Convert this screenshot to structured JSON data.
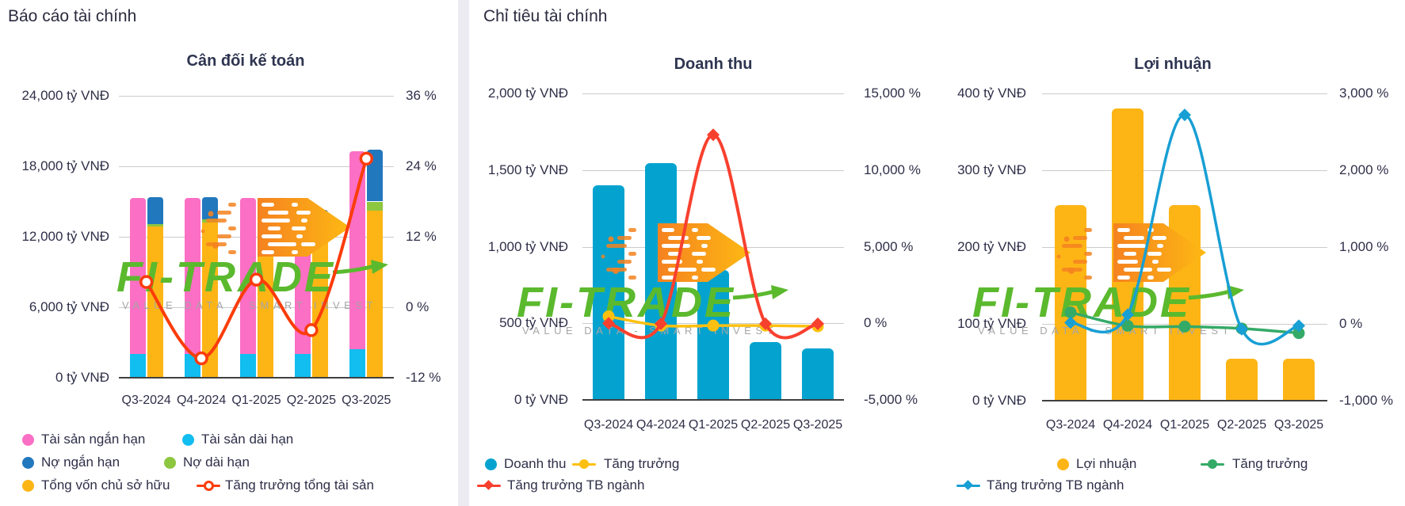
{
  "page": {
    "left_section_title": "Báo cáo tài chính",
    "right_section_title": "Chỉ tiêu tài chính"
  },
  "watermark": {
    "brand": "FI-TRADE",
    "tagline": "VALUE DATA - SMART INVEST",
    "arrow_color_start": "#f58220",
    "arrow_color_end": "#fdb913",
    "brand_color": "#5bb92e",
    "tagline_color": "#a6a6a6"
  },
  "colors": {
    "grid": "#cccccc",
    "axis": "#404040",
    "text": "#2f2f49",
    "divider": "#ebebf1"
  },
  "chart_data": [
    {
      "id": "can-doi-ke-toan",
      "type": "bar",
      "title": "Cân đối kế toán",
      "categories": [
        "Q3-2024",
        "Q4-2024",
        "Q1-2025",
        "Q2-2025",
        "Q3-2025"
      ],
      "left_axis": {
        "min": 0,
        "max": 24000,
        "ticks": [
          "24,000 tỷ VNĐ",
          "18,000 tỷ VNĐ",
          "12,000 tỷ VNĐ",
          "6,000 tỷ VNĐ",
          "0 tỷ VNĐ"
        ]
      },
      "right_axis": {
        "min": -12,
        "max": 36,
        "ticks": [
          "36 %",
          "24 %",
          "12 %",
          "0 %",
          "-12 %"
        ]
      },
      "stacks": [
        {
          "name": "tai-san",
          "series": [
            {
              "key": "tai-san-dai-han",
              "name": "Tài sản dài hạn",
              "color": "#12bdf0",
              "values": [
                2000,
                2000,
                2000,
                2000,
                2400
              ]
            },
            {
              "key": "tai-san-ngan-han",
              "name": "Tài sản ngắn hạn",
              "color": "#fb6fc4",
              "values": [
                13300,
                13300,
                13300,
                12400,
                16900
              ]
            }
          ]
        },
        {
          "name": "nguon-von",
          "series": [
            {
              "key": "tong-von-chu-so-huu",
              "name": "Tổng vốn chủ sở hữu",
              "color": "#fdb515",
              "values": [
                12850,
                13200,
                13400,
                12300,
                14200
              ]
            },
            {
              "key": "no-dai-han",
              "name": "Nợ dài hạn",
              "color": "#8dc63f",
              "values": [
                200,
                250,
                400,
                700,
                800
              ]
            },
            {
              "key": "no-ngan-han",
              "name": "Nợ ngắn hạn",
              "color": "#2278bd",
              "values": [
                2350,
                1950,
                1500,
                1300,
                4400
              ]
            }
          ]
        }
      ],
      "lines": [
        {
          "key": "tang-truong-tong-tai-san",
          "name": "Tăng trưởng tổng tài sản",
          "color": "#fb3c0a",
          "marker": "circle-open",
          "axis": "right",
          "width": 4,
          "values": [
            4.3,
            -8.7,
            4.7,
            -3.9,
            25.3
          ]
        }
      ],
      "legend": [
        [
          {
            "key": "tai-san-ngan-han",
            "label": "Tài sản ngắn hạn",
            "swatch": "circle",
            "color": "#fb6fc4"
          },
          {
            "key": "tai-san-dai-han",
            "label": "Tài sản dài hạn",
            "swatch": "circle",
            "color": "#12bdf0"
          }
        ],
        [
          {
            "key": "no-ngan-han",
            "label": "Nợ ngắn hạn",
            "swatch": "circle",
            "color": "#2278bd"
          },
          {
            "key": "no-dai-han",
            "label": "Nợ dài hạn",
            "swatch": "circle",
            "color": "#8dc63f"
          }
        ],
        [
          {
            "key": "tong-von-chu-so-huu",
            "label": "Tổng vốn chủ sở hữu",
            "swatch": "circle",
            "color": "#fdb515"
          },
          {
            "key": "tang-truong-tong-tai-san",
            "label": "Tăng trưởng tổng tài sản",
            "swatch": "line-circle-open",
            "color": "#fb3c0a"
          }
        ]
      ]
    },
    {
      "id": "doanh-thu",
      "type": "bar",
      "title": "Doanh thu",
      "categories": [
        "Q3-2024",
        "Q4-2024",
        "Q1-2025",
        "Q2-2025",
        "Q3-2025"
      ],
      "left_axis": {
        "min": 0,
        "max": 2000,
        "ticks": [
          "2,000 tỷ VNĐ",
          "1,500 tỷ VNĐ",
          "1,000 tỷ VNĐ",
          "500 tỷ VNĐ",
          "0 tỷ VNĐ"
        ]
      },
      "right_axis": {
        "min": -5000,
        "max": 15000,
        "ticks": [
          "15,000 %",
          "10,000 %",
          "5,000 %",
          "0 %",
          "-5,000 %"
        ]
      },
      "stacks": [
        {
          "name": "doanh-thu",
          "series": [
            {
              "key": "doanh-thu",
              "name": "Doanh thu",
              "color": "#04a3cf",
              "values": [
                1400,
                1545,
                845,
                375,
                335
              ]
            }
          ]
        }
      ],
      "lines": [
        {
          "key": "tang-truong",
          "name": "Tăng trưởng",
          "color": "#fdc010",
          "marker": "circle",
          "axis": "right",
          "width": 3.5,
          "values": [
            450,
            -150,
            -150,
            -150,
            -200
          ]
        },
        {
          "key": "tang-truong-tb-nganh",
          "name": "Tăng trưởng TB ngành",
          "color": "#f8402e",
          "marker": "diamond",
          "axis": "right",
          "width": 4,
          "values": [
            0,
            -30,
            12300,
            -30,
            -30
          ]
        }
      ],
      "legend": [
        [
          {
            "key": "doanh-thu",
            "label": "Doanh thu",
            "swatch": "circle",
            "color": "#04a3cf"
          },
          {
            "key": "tang-truong",
            "label": "Tăng trưởng",
            "swatch": "line-circle",
            "color": "#fdc010"
          }
        ],
        [
          {
            "key": "tang-truong-tb-nganh",
            "label": "Tăng trưởng TB ngành",
            "swatch": "line-diamond",
            "color": "#f8402e"
          }
        ]
      ]
    },
    {
      "id": "loi-nhuan",
      "type": "bar",
      "title": "Lợi nhuận",
      "categories": [
        "Q3-2024",
        "Q4-2024",
        "Q1-2025",
        "Q2-2025",
        "Q3-2025"
      ],
      "left_axis": {
        "min": 0,
        "max": 400,
        "ticks": [
          "400 tỷ VNĐ",
          "300 tỷ VNĐ",
          "200 tỷ VNĐ",
          "100 tỷ VNĐ",
          "0 tỷ VNĐ"
        ]
      },
      "right_axis": {
        "min": -1000,
        "max": 3000,
        "ticks": [
          "3,000 %",
          "2,000 %",
          "1,000 %",
          "0 %",
          "-1,000 %"
        ]
      },
      "stacks": [
        {
          "name": "loi-nhuan",
          "series": [
            {
              "key": "loi-nhuan",
              "name": "Lợi nhuận",
              "color": "#fdb515",
              "values": [
                255,
                380,
                255,
                55,
                55
              ]
            }
          ]
        }
      ],
      "lines": [
        {
          "key": "tang-truong",
          "name": "Tăng trưởng",
          "color": "#34aa67",
          "marker": "circle",
          "axis": "right",
          "width": 3.5,
          "values": [
            150,
            -25,
            -35,
            -60,
            -120
          ]
        },
        {
          "key": "tang-truong-tb-nganh",
          "name": "Tăng trưởng TB ngành",
          "color": "#189fd4",
          "marker": "diamond",
          "axis": "right",
          "width": 3.5,
          "values": [
            15,
            120,
            2720,
            -70,
            -25
          ]
        }
      ],
      "legend": [
        [
          {
            "key": "loi-nhuan",
            "label": "Lợi nhuận",
            "swatch": "circle",
            "color": "#fdb515"
          },
          {
            "key": "tang-truong",
            "label": "Tăng trưởng",
            "swatch": "line-circle",
            "color": "#34aa67"
          }
        ],
        [
          {
            "key": "tang-truong-tb-nganh",
            "label": "Tăng trưởng TB ngành",
            "swatch": "line-diamond",
            "color": "#189fd4"
          }
        ]
      ]
    }
  ]
}
